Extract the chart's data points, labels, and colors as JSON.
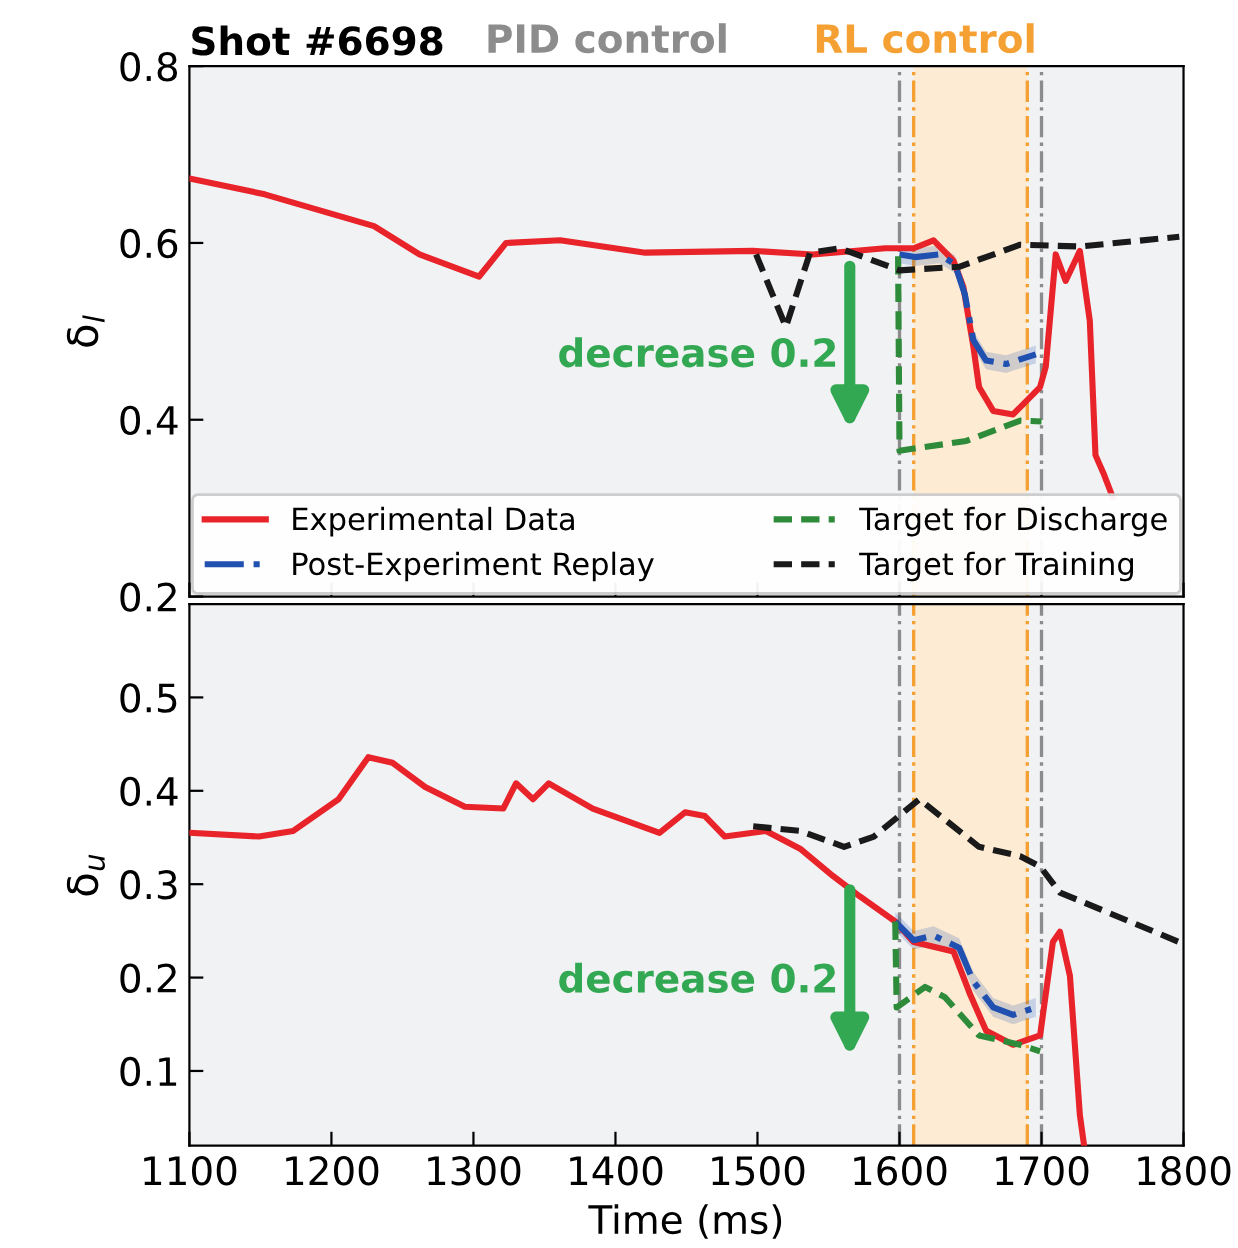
{
  "chart_data": [
    {
      "type": "line",
      "title": "Shot #6698",
      "ylabel": "δ$_{l}$",
      "annotations": [
        "PID control",
        "RL control",
        {
          "text": "decrease 0.2",
          "x": 1565,
          "y": 0.58
        }
      ],
      "xlim": [
        1100,
        1800
      ],
      "xticks": [
        1100,
        1200,
        1300,
        1400,
        1500,
        1600,
        1700,
        1800
      ],
      "ylim": [
        0.2,
        0.8
      ],
      "yticks": [
        0.2,
        0.4,
        0.6,
        0.8
      ],
      "tick_labels": "y",
      "grid": false,
      "legend": "bottom",
      "bands": [
        {
          "axis": "x",
          "from": 1610,
          "to": 1690,
          "color": "#fdebd3"
        }
      ],
      "ref_lines": [
        {
          "axis": "x",
          "value": 1600,
          "color": "#8c8c8c",
          "line_style": "dashdot"
        },
        {
          "axis": "x",
          "value": 1610,
          "color": "#f5a033",
          "line_style": "dashdot"
        },
        {
          "axis": "x",
          "value": 1690,
          "color": "#f5a033",
          "line_style": "dashdot"
        },
        {
          "axis": "x",
          "value": 1700,
          "color": "#8c8c8c",
          "line_style": "dashdot"
        }
      ],
      "series": [
        {
          "name": "Experimental Data",
          "color": "#e8242a",
          "line_style": "solid",
          "x": [
            1100,
            1153,
            1230,
            1262,
            1304,
            1323,
            1361,
            1421,
            1497,
            1539,
            1590,
            1610,
            1624,
            1638,
            1645,
            1652,
            1656,
            1666,
            1680,
            1699,
            1703,
            1710,
            1717,
            1727,
            1734,
            1738,
            1744,
            1750
          ],
          "values": [
            0.673,
            0.655,
            0.619,
            0.587,
            0.562,
            0.6,
            0.603,
            0.589,
            0.591,
            0.587,
            0.594,
            0.594,
            0.603,
            0.58,
            0.55,
            0.483,
            0.437,
            0.41,
            0.406,
            0.437,
            0.46,
            0.587,
            0.557,
            0.591,
            0.512,
            0.36,
            0.338,
            0.313
          ]
        },
        {
          "name": "Post-Experiment Replay",
          "color": "#2050b0",
          "line_style": "dashdot",
          "x": [
            1600,
            1611,
            1628,
            1639,
            1646,
            1652,
            1661,
            1675,
            1696
          ],
          "values": [
            0.587,
            0.584,
            0.587,
            0.576,
            0.542,
            0.49,
            0.467,
            0.463,
            0.474
          ],
          "lower": [
            0.577,
            0.574,
            0.577,
            0.566,
            0.532,
            0.48,
            0.457,
            0.453,
            0.464
          ],
          "upper": [
            0.597,
            0.594,
            0.597,
            0.586,
            0.552,
            0.5,
            0.477,
            0.473,
            0.484
          ]
        },
        {
          "name": "Target for Discharge",
          "color": "#2e8b3a",
          "line_style": "dashed",
          "x": [
            1599,
            1600,
            1647,
            1685,
            1700
          ],
          "values": [
            0.585,
            0.365,
            0.376,
            0.399,
            0.398
          ]
        },
        {
          "name": "Target for Training",
          "color": "#1a1a1a",
          "line_style": "dashed",
          "x": [
            1499,
            1520,
            1537,
            1558,
            1600,
            1642,
            1685,
            1727,
            1797
          ],
          "values": [
            0.587,
            0.505,
            0.589,
            0.594,
            0.569,
            0.573,
            0.598,
            0.596,
            0.607
          ]
        }
      ]
    },
    {
      "type": "line",
      "ylabel": "δ$_{u}$",
      "xlabel": "Time (ms)",
      "annotations": [
        {
          "text": "decrease 0.2",
          "x": 1565,
          "y": 0.3
        }
      ],
      "xlim": [
        1100,
        1800
      ],
      "xticks": [
        1100,
        1200,
        1300,
        1400,
        1500,
        1600,
        1700,
        1800
      ],
      "ylim": [
        0.02,
        0.6
      ],
      "yticks": [
        0.1,
        0.2,
        0.3,
        0.4,
        0.5
      ],
      "grid": false,
      "bands": [
        {
          "axis": "x",
          "from": 1610,
          "to": 1690,
          "color": "#fdebd3"
        }
      ],
      "ref_lines": [
        {
          "axis": "x",
          "value": 1600,
          "color": "#8c8c8c",
          "line_style": "dashdot"
        },
        {
          "axis": "x",
          "value": 1610,
          "color": "#f5a033",
          "line_style": "dashdot"
        },
        {
          "axis": "x",
          "value": 1690,
          "color": "#f5a033",
          "line_style": "dashdot"
        },
        {
          "axis": "x",
          "value": 1700,
          "color": "#8c8c8c",
          "line_style": "dashdot"
        }
      ],
      "series": [
        {
          "color": "#e8242a",
          "line_style": "solid",
          "x": [
            1100,
            1149,
            1173,
            1205,
            1226,
            1243,
            1266,
            1294,
            1321,
            1330,
            1342,
            1353,
            1384,
            1431,
            1449,
            1463,
            1477,
            1506,
            1530,
            1553,
            1572,
            1597,
            1610,
            1638,
            1650,
            1661,
            1680,
            1699,
            1708,
            1713,
            1720,
            1727,
            1730
          ],
          "values": [
            0.355,
            0.351,
            0.357,
            0.391,
            0.436,
            0.43,
            0.404,
            0.383,
            0.381,
            0.408,
            0.391,
            0.408,
            0.381,
            0.355,
            0.377,
            0.373,
            0.351,
            0.357,
            0.338,
            0.309,
            0.287,
            0.26,
            0.238,
            0.228,
            0.181,
            0.143,
            0.128,
            0.138,
            0.238,
            0.249,
            0.202,
            0.053,
            0.02
          ]
        },
        {
          "color": "#2050b0",
          "line_style": "dashdot",
          "x": [
            1597,
            1610,
            1624,
            1642,
            1652,
            1666,
            1680,
            1696
          ],
          "values": [
            0.26,
            0.24,
            0.245,
            0.232,
            0.196,
            0.168,
            0.16,
            0.168
          ],
          "lower": [
            0.25,
            0.23,
            0.235,
            0.222,
            0.186,
            0.158,
            0.15,
            0.158
          ],
          "upper": [
            0.27,
            0.25,
            0.255,
            0.242,
            0.206,
            0.178,
            0.17,
            0.178
          ]
        },
        {
          "color": "#2e8b3a",
          "line_style": "dashed",
          "x": [
            1597,
            1598,
            1618,
            1632,
            1656,
            1685,
            1699
          ],
          "values": [
            0.26,
            0.168,
            0.19,
            0.179,
            0.138,
            0.128,
            0.121
          ]
        },
        {
          "color": "#1a1a1a",
          "line_style": "dashed",
          "x": [
            1497,
            1530,
            1561,
            1582,
            1614,
            1656,
            1685,
            1699,
            1713,
            1797
          ],
          "values": [
            0.362,
            0.357,
            0.34,
            0.351,
            0.391,
            0.34,
            0.33,
            0.319,
            0.291,
            0.238
          ]
        }
      ]
    }
  ]
}
